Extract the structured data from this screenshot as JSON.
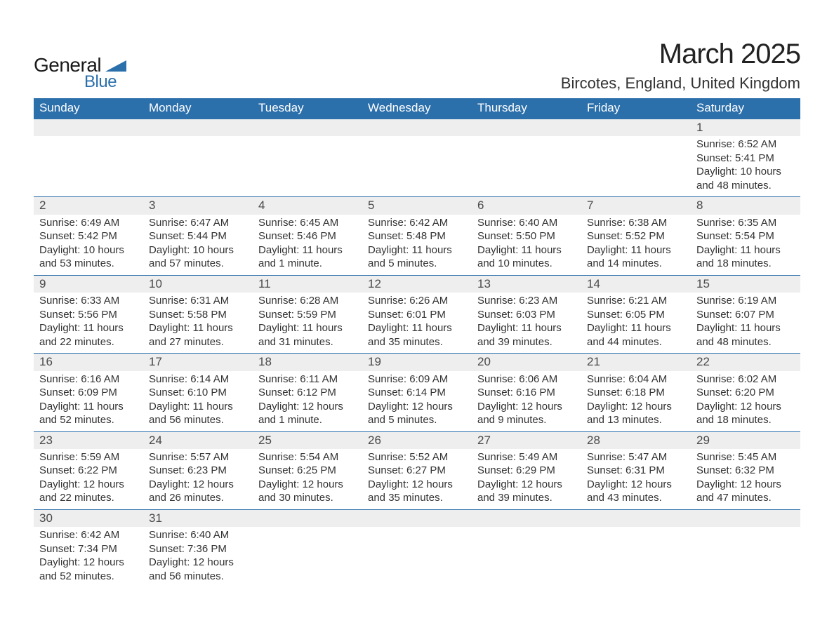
{
  "brand": {
    "name_part1": "General",
    "name_part2": "Blue",
    "text_color": "#1a1a1a",
    "accent_color": "#2b6fab"
  },
  "header": {
    "title": "March 2025",
    "location": "Bircotes, England, United Kingdom",
    "title_color": "#222222",
    "location_color": "#333333"
  },
  "calendar": {
    "header_bg": "#2b6fab",
    "header_fg": "#ffffff",
    "daynum_bg": "#eeeeee",
    "cell_border": "#2b6fab",
    "text_color": "#333333",
    "font_size_header": 17,
    "font_size_daynum": 17,
    "font_size_details": 15,
    "columns": [
      "Sunday",
      "Monday",
      "Tuesday",
      "Wednesday",
      "Thursday",
      "Friday",
      "Saturday"
    ],
    "weeks": [
      [
        null,
        null,
        null,
        null,
        null,
        null,
        {
          "day": "1",
          "sunrise": "Sunrise: 6:52 AM",
          "sunset": "Sunset: 5:41 PM",
          "daylight1": "Daylight: 10 hours",
          "daylight2": "and 48 minutes."
        }
      ],
      [
        {
          "day": "2",
          "sunrise": "Sunrise: 6:49 AM",
          "sunset": "Sunset: 5:42 PM",
          "daylight1": "Daylight: 10 hours",
          "daylight2": "and 53 minutes."
        },
        {
          "day": "3",
          "sunrise": "Sunrise: 6:47 AM",
          "sunset": "Sunset: 5:44 PM",
          "daylight1": "Daylight: 10 hours",
          "daylight2": "and 57 minutes."
        },
        {
          "day": "4",
          "sunrise": "Sunrise: 6:45 AM",
          "sunset": "Sunset: 5:46 PM",
          "daylight1": "Daylight: 11 hours",
          "daylight2": "and 1 minute."
        },
        {
          "day": "5",
          "sunrise": "Sunrise: 6:42 AM",
          "sunset": "Sunset: 5:48 PM",
          "daylight1": "Daylight: 11 hours",
          "daylight2": "and 5 minutes."
        },
        {
          "day": "6",
          "sunrise": "Sunrise: 6:40 AM",
          "sunset": "Sunset: 5:50 PM",
          "daylight1": "Daylight: 11 hours",
          "daylight2": "and 10 minutes."
        },
        {
          "day": "7",
          "sunrise": "Sunrise: 6:38 AM",
          "sunset": "Sunset: 5:52 PM",
          "daylight1": "Daylight: 11 hours",
          "daylight2": "and 14 minutes."
        },
        {
          "day": "8",
          "sunrise": "Sunrise: 6:35 AM",
          "sunset": "Sunset: 5:54 PM",
          "daylight1": "Daylight: 11 hours",
          "daylight2": "and 18 minutes."
        }
      ],
      [
        {
          "day": "9",
          "sunrise": "Sunrise: 6:33 AM",
          "sunset": "Sunset: 5:56 PM",
          "daylight1": "Daylight: 11 hours",
          "daylight2": "and 22 minutes."
        },
        {
          "day": "10",
          "sunrise": "Sunrise: 6:31 AM",
          "sunset": "Sunset: 5:58 PM",
          "daylight1": "Daylight: 11 hours",
          "daylight2": "and 27 minutes."
        },
        {
          "day": "11",
          "sunrise": "Sunrise: 6:28 AM",
          "sunset": "Sunset: 5:59 PM",
          "daylight1": "Daylight: 11 hours",
          "daylight2": "and 31 minutes."
        },
        {
          "day": "12",
          "sunrise": "Sunrise: 6:26 AM",
          "sunset": "Sunset: 6:01 PM",
          "daylight1": "Daylight: 11 hours",
          "daylight2": "and 35 minutes."
        },
        {
          "day": "13",
          "sunrise": "Sunrise: 6:23 AM",
          "sunset": "Sunset: 6:03 PM",
          "daylight1": "Daylight: 11 hours",
          "daylight2": "and 39 minutes."
        },
        {
          "day": "14",
          "sunrise": "Sunrise: 6:21 AM",
          "sunset": "Sunset: 6:05 PM",
          "daylight1": "Daylight: 11 hours",
          "daylight2": "and 44 minutes."
        },
        {
          "day": "15",
          "sunrise": "Sunrise: 6:19 AM",
          "sunset": "Sunset: 6:07 PM",
          "daylight1": "Daylight: 11 hours",
          "daylight2": "and 48 minutes."
        }
      ],
      [
        {
          "day": "16",
          "sunrise": "Sunrise: 6:16 AM",
          "sunset": "Sunset: 6:09 PM",
          "daylight1": "Daylight: 11 hours",
          "daylight2": "and 52 minutes."
        },
        {
          "day": "17",
          "sunrise": "Sunrise: 6:14 AM",
          "sunset": "Sunset: 6:10 PM",
          "daylight1": "Daylight: 11 hours",
          "daylight2": "and 56 minutes."
        },
        {
          "day": "18",
          "sunrise": "Sunrise: 6:11 AM",
          "sunset": "Sunset: 6:12 PM",
          "daylight1": "Daylight: 12 hours",
          "daylight2": "and 1 minute."
        },
        {
          "day": "19",
          "sunrise": "Sunrise: 6:09 AM",
          "sunset": "Sunset: 6:14 PM",
          "daylight1": "Daylight: 12 hours",
          "daylight2": "and 5 minutes."
        },
        {
          "day": "20",
          "sunrise": "Sunrise: 6:06 AM",
          "sunset": "Sunset: 6:16 PM",
          "daylight1": "Daylight: 12 hours",
          "daylight2": "and 9 minutes."
        },
        {
          "day": "21",
          "sunrise": "Sunrise: 6:04 AM",
          "sunset": "Sunset: 6:18 PM",
          "daylight1": "Daylight: 12 hours",
          "daylight2": "and 13 minutes."
        },
        {
          "day": "22",
          "sunrise": "Sunrise: 6:02 AM",
          "sunset": "Sunset: 6:20 PM",
          "daylight1": "Daylight: 12 hours",
          "daylight2": "and 18 minutes."
        }
      ],
      [
        {
          "day": "23",
          "sunrise": "Sunrise: 5:59 AM",
          "sunset": "Sunset: 6:22 PM",
          "daylight1": "Daylight: 12 hours",
          "daylight2": "and 22 minutes."
        },
        {
          "day": "24",
          "sunrise": "Sunrise: 5:57 AM",
          "sunset": "Sunset: 6:23 PM",
          "daylight1": "Daylight: 12 hours",
          "daylight2": "and 26 minutes."
        },
        {
          "day": "25",
          "sunrise": "Sunrise: 5:54 AM",
          "sunset": "Sunset: 6:25 PM",
          "daylight1": "Daylight: 12 hours",
          "daylight2": "and 30 minutes."
        },
        {
          "day": "26",
          "sunrise": "Sunrise: 5:52 AM",
          "sunset": "Sunset: 6:27 PM",
          "daylight1": "Daylight: 12 hours",
          "daylight2": "and 35 minutes."
        },
        {
          "day": "27",
          "sunrise": "Sunrise: 5:49 AM",
          "sunset": "Sunset: 6:29 PM",
          "daylight1": "Daylight: 12 hours",
          "daylight2": "and 39 minutes."
        },
        {
          "day": "28",
          "sunrise": "Sunrise: 5:47 AM",
          "sunset": "Sunset: 6:31 PM",
          "daylight1": "Daylight: 12 hours",
          "daylight2": "and 43 minutes."
        },
        {
          "day": "29",
          "sunrise": "Sunrise: 5:45 AM",
          "sunset": "Sunset: 6:32 PM",
          "daylight1": "Daylight: 12 hours",
          "daylight2": "and 47 minutes."
        }
      ],
      [
        {
          "day": "30",
          "sunrise": "Sunrise: 6:42 AM",
          "sunset": "Sunset: 7:34 PM",
          "daylight1": "Daylight: 12 hours",
          "daylight2": "and 52 minutes."
        },
        {
          "day": "31",
          "sunrise": "Sunrise: 6:40 AM",
          "sunset": "Sunset: 7:36 PM",
          "daylight1": "Daylight: 12 hours",
          "daylight2": "and 56 minutes."
        },
        null,
        null,
        null,
        null,
        null
      ]
    ]
  }
}
